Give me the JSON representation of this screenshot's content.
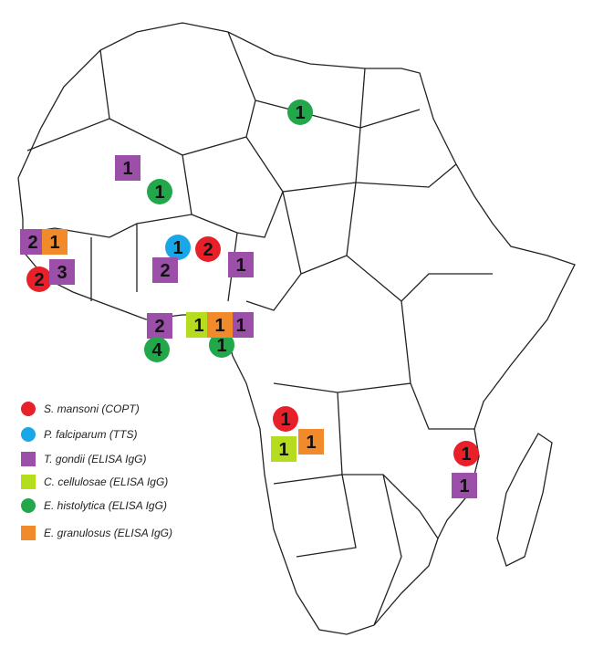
{
  "layers": [
    {
      "label": "S. mansoni (COPT)",
      "color": "#e8202a",
      "shape": "circle",
      "counts": [
        2,
        2,
        1,
        1
      ]
    },
    {
      "label": "P. falciparum (TTS)",
      "color": "#1aa7e8",
      "shape": "circle",
      "counts": [
        1
      ]
    },
    {
      "label": "T. gondii  (ELISA IgG)",
      "color": "#9b4fa8",
      "shape": "square",
      "counts": [
        1,
        2,
        3,
        2,
        1,
        2,
        1,
        1
      ]
    },
    {
      "label": "C. cellulosae  (ELISA IgG)",
      "color": "#b5dc1e",
      "shape": "square",
      "counts": [
        1,
        1
      ]
    },
    {
      "label": "E. histolytica  (ELISA IgG)",
      "color": "#22a84a",
      "shape": "circle",
      "counts": [
        1,
        1,
        4,
        1
      ]
    },
    {
      "label": "E. granulosus  (ELISA IgG)",
      "color": "#f08a2a",
      "shape": "square",
      "counts": [
        1,
        1,
        1
      ]
    }
  ]
}
